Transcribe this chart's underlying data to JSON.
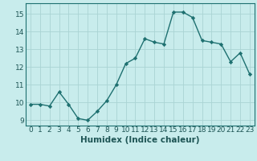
{
  "x": [
    0,
    1,
    2,
    3,
    4,
    5,
    6,
    7,
    8,
    9,
    10,
    11,
    12,
    13,
    14,
    15,
    16,
    17,
    18,
    19,
    20,
    21,
    22,
    23
  ],
  "y": [
    9.9,
    9.9,
    9.8,
    10.6,
    9.9,
    9.1,
    9.0,
    9.5,
    10.1,
    11.0,
    12.2,
    12.5,
    13.6,
    13.4,
    13.3,
    15.1,
    15.1,
    14.8,
    13.5,
    13.4,
    13.3,
    12.3,
    12.8,
    11.6
  ],
  "line_color": "#1e7070",
  "marker_color": "#1e7070",
  "bg_color": "#c8ecec",
  "grid_color": "#aad4d4",
  "xlabel": "Humidex (Indice chaleur)",
  "ylim": [
    8.7,
    15.6
  ],
  "xlim": [
    -0.5,
    23.5
  ],
  "yticks": [
    9,
    10,
    11,
    12,
    13,
    14,
    15
  ],
  "xticks": [
    0,
    1,
    2,
    3,
    4,
    5,
    6,
    7,
    8,
    9,
    10,
    11,
    12,
    13,
    14,
    15,
    16,
    17,
    18,
    19,
    20,
    21,
    22,
    23
  ],
  "tick_label_fontsize": 6.5,
  "xlabel_fontsize": 7.5
}
